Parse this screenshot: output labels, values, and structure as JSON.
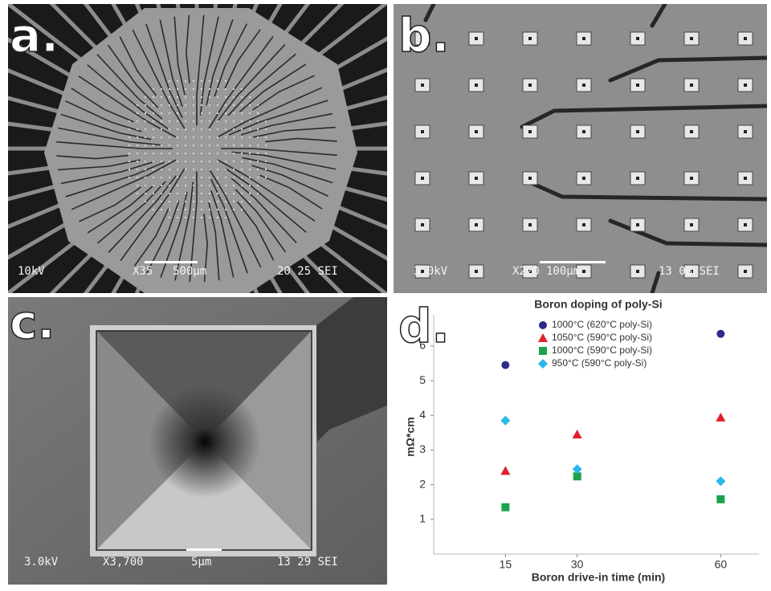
{
  "panels": {
    "a": {
      "label": "a.",
      "info": [
        "10kV",
        "X35",
        "500µm",
        "20 25 SEI"
      ]
    },
    "b": {
      "label": "b.",
      "info": [
        "3.0kV",
        "X220",
        "100µm",
        "13 08 SEI"
      ]
    },
    "c": {
      "label": "c.",
      "info": [
        "3.0kV",
        "X3,700",
        "5µm",
        "13 29 SEI"
      ]
    },
    "d": {
      "label": "d."
    }
  },
  "chart_data": {
    "type": "scatter",
    "title": "Boron doping of poly-Si",
    "x_label": "Boron drive-in time (min)",
    "y_label": "mΩ*cm",
    "x": [
      15,
      30,
      60
    ],
    "series": [
      {
        "name": "1000°C (620°C poly-Si)",
        "color": "#2e2a8c",
        "marker": "circle",
        "values": [
          5.45,
          null,
          6.35
        ]
      },
      {
        "name": "1050°C (590°C poly-Si)",
        "color": "#e0202c",
        "marker": "triangle",
        "values": [
          2.4,
          3.45,
          3.94
        ]
      },
      {
        "name": "1000°C (590°C poly-Si)",
        "color": "#1aa34a",
        "marker": "square",
        "values": [
          1.35,
          2.24,
          1.58
        ]
      },
      {
        "name": "950°C (590°C poly-Si)",
        "color": "#2ab8e8",
        "marker": "diamond",
        "values": [
          3.85,
          2.45,
          2.1
        ]
      }
    ],
    "xlim": [
      0,
      68
    ],
    "xticks": [
      15,
      30,
      60
    ],
    "ylim": [
      0,
      6.9
    ],
    "yticks": [
      1,
      2,
      3,
      4,
      5,
      6
    ],
    "legend": "top"
  }
}
